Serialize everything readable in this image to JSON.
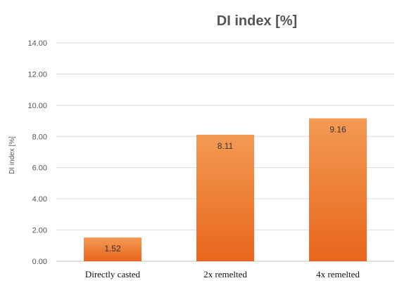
{
  "chart_data": {
    "type": "bar",
    "title": "DI index [%]",
    "xlabel": "",
    "ylabel": "DI index [%]",
    "categories": [
      "Directly casted",
      "2x remelted",
      "4x remelted"
    ],
    "values": [
      1.52,
      8.11,
      9.16
    ],
    "data_labels": [
      "1.52",
      "8.11",
      "9.16"
    ],
    "ylim": [
      0,
      14
    ],
    "yticks": [
      0,
      2,
      4,
      6,
      8,
      10,
      12,
      14
    ],
    "ytick_labels": [
      "0.00",
      "2.00",
      "4.00",
      "6.00",
      "8.00",
      "10.00",
      "12.00",
      "14.00"
    ],
    "grid": true,
    "legend": "none",
    "colors": {
      "bar_top": "#f39a54",
      "bar_bottom": "#e8661c",
      "grid": "#d9d9d9",
      "text": "#555555"
    }
  }
}
